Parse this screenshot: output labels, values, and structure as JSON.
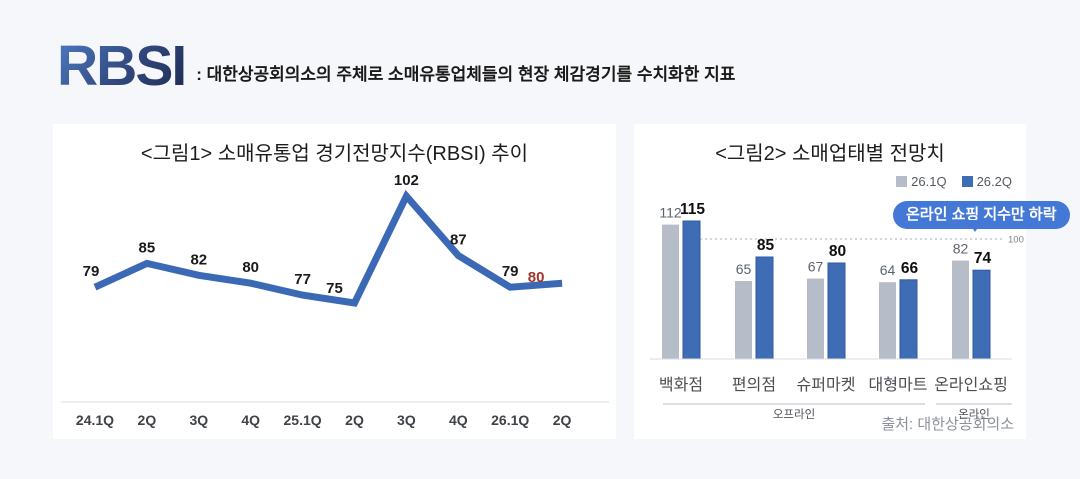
{
  "header": {
    "logo": "RBSI",
    "subtitle": ": 대한상공회의소의 주체로 소매유통업체들의 현장 체감경기를 수치화한 지표"
  },
  "colors": {
    "page_background": "#f6f7fa",
    "card_background": "#ffffff",
    "accent_blue": "#3c69b5",
    "annotation_blue": "#4478d6",
    "highlight_red": "#a0362c",
    "gray_bar": "#b6bcc8"
  },
  "source": "출처: 대한상공회의소",
  "chart_data": [
    {
      "type": "line",
      "title": "<그림1> 소매유통업 경기전망지수(RBSI) 추이",
      "categories": [
        "24.1Q",
        "2Q",
        "3Q",
        "4Q",
        "25.1Q",
        "2Q",
        "3Q",
        "4Q",
        "26.1Q",
        "2Q"
      ],
      "values": [
        79,
        85,
        82,
        80,
        77,
        75,
        102,
        87,
        79,
        80
      ],
      "line_color": "#3c69b5",
      "label_color": "#1a1a1a",
      "last_value_color": "#a0362c",
      "ylim": [
        70,
        108
      ],
      "grid": false,
      "legend": "none",
      "note": "last value 80 highlighted in red"
    },
    {
      "type": "bar",
      "title": "<그림2> 소매업태별 전망치",
      "categories": [
        "백화점",
        "편의점",
        "슈퍼마켓",
        "대형마트",
        "온라인쇼핑"
      ],
      "series": [
        {
          "name": "26.1Q",
          "color": "#b6bcc8",
          "values": [
            112,
            65,
            67,
            64,
            82
          ]
        },
        {
          "name": "26.2Q",
          "color": "#3e6cb5",
          "values": [
            115,
            85,
            80,
            66,
            74
          ]
        }
      ],
      "reference_line": {
        "value": 100,
        "label": "100"
      },
      "group_labels": [
        {
          "label": "오프라인",
          "from": 0,
          "to": 3
        },
        {
          "label": "온라인",
          "from": 4,
          "to": 4
        }
      ],
      "annotation": "온라인 쇼핑 지수만 하락",
      "annotation_color": "#4478d6",
      "ylim": [
        0,
        125
      ],
      "grid": false,
      "legend_position": "top-right"
    }
  ]
}
